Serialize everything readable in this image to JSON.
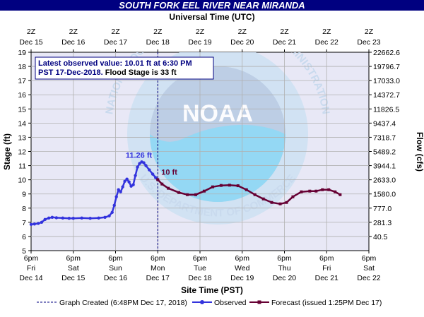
{
  "chart_data": {
    "type": "line",
    "title": "SOUTH FORK EEL RIVER NEAR MIRANDA",
    "top_axis_title": "Universal Time (UTC)",
    "xlabel": "Site Time (PST)",
    "ylabel": "Stage (ft)",
    "y2label": "Flow (cfs)",
    "ylim": [
      5,
      19
    ],
    "y_ticks": [
      "5",
      "6",
      "7",
      "8",
      "9",
      "10",
      "11",
      "12",
      "13",
      "14",
      "15",
      "16",
      "17",
      "18",
      "19"
    ],
    "flow_ticks": [
      {
        "stage": 6,
        "label": "40.5"
      },
      {
        "stage": 7,
        "label": "281.3"
      },
      {
        "stage": 8,
        "label": "777.0"
      },
      {
        "stage": 9,
        "label": "1580.0"
      },
      {
        "stage": 10,
        "label": "2633.0"
      },
      {
        "stage": 11,
        "label": "3944.1"
      },
      {
        "stage": 12,
        "label": "5489.2"
      },
      {
        "stage": 13,
        "label": "7318.7"
      },
      {
        "stage": 14,
        "label": "9437.4"
      },
      {
        "stage": 15,
        "label": "11826.5"
      },
      {
        "stage": 16,
        "label": "14372.7"
      },
      {
        "stage": 17,
        "label": "17033.0"
      },
      {
        "stage": 18,
        "label": "19796.7"
      },
      {
        "stage": 19,
        "label": "22662.6"
      }
    ],
    "bottom_ticks": [
      {
        "time": "6pm",
        "dow": "Fri",
        "date": "Dec 14"
      },
      {
        "time": "6pm",
        "dow": "Sat",
        "date": "Dec 15"
      },
      {
        "time": "6pm",
        "dow": "Sun",
        "date": "Dec 16"
      },
      {
        "time": "6pm",
        "dow": "Mon",
        "date": "Dec 17"
      },
      {
        "time": "6pm",
        "dow": "Tue",
        "date": "Dec 18"
      },
      {
        "time": "6pm",
        "dow": "Wed",
        "date": "Dec 19"
      },
      {
        "time": "6pm",
        "dow": "Thu",
        "date": "Dec 20"
      },
      {
        "time": "6pm",
        "dow": "Fri",
        "date": "Dec 21"
      },
      {
        "time": "6pm",
        "dow": "Sat",
        "date": "Dec 22"
      }
    ],
    "top_ticks": [
      {
        "time": "2Z",
        "date": "Dec 15"
      },
      {
        "time": "2Z",
        "date": "Dec 16"
      },
      {
        "time": "2Z",
        "date": "Dec 17"
      },
      {
        "time": "2Z",
        "date": "Dec 18"
      },
      {
        "time": "2Z",
        "date": "Dec 19"
      },
      {
        "time": "2Z",
        "date": "Dec 20"
      },
      {
        "time": "2Z",
        "date": "Dec 21"
      },
      {
        "time": "2Z",
        "date": "Dec 22"
      },
      {
        "time": "2Z",
        "date": "Dec 23"
      }
    ],
    "info_box": {
      "line1": "Latest observed value: 10.01 ft at 6:30 PM",
      "line2a": "PST 17-Dec-2018.",
      "line2b": " Flood Stage is 33 ft"
    },
    "peak_label": "11.26 ft",
    "current_label": "10 ft",
    "now_day": 3.0,
    "observed": [
      [
        0.0,
        6.85
      ],
      [
        0.08,
        6.88
      ],
      [
        0.17,
        6.92
      ],
      [
        0.25,
        7.0
      ],
      [
        0.33,
        7.2
      ],
      [
        0.42,
        7.3
      ],
      [
        0.5,
        7.35
      ],
      [
        0.6,
        7.32
      ],
      [
        0.75,
        7.3
      ],
      [
        0.9,
        7.28
      ],
      [
        1.0,
        7.28
      ],
      [
        1.2,
        7.3
      ],
      [
        1.4,
        7.28
      ],
      [
        1.6,
        7.3
      ],
      [
        1.75,
        7.35
      ],
      [
        1.85,
        7.45
      ],
      [
        1.92,
        7.7
      ],
      [
        1.97,
        8.2
      ],
      [
        2.02,
        8.8
      ],
      [
        2.07,
        9.3
      ],
      [
        2.12,
        9.15
      ],
      [
        2.17,
        9.5
      ],
      [
        2.22,
        9.9
      ],
      [
        2.27,
        10.05
      ],
      [
        2.32,
        9.85
      ],
      [
        2.37,
        9.55
      ],
      [
        2.42,
        9.65
      ],
      [
        2.47,
        10.3
      ],
      [
        2.52,
        10.9
      ],
      [
        2.57,
        11.15
      ],
      [
        2.62,
        11.26
      ],
      [
        2.67,
        11.2
      ],
      [
        2.72,
        11.0
      ],
      [
        2.8,
        10.7
      ],
      [
        2.88,
        10.4
      ],
      [
        2.95,
        10.15
      ],
      [
        3.0,
        10.01
      ]
    ],
    "forecast": [
      [
        3.0,
        10.01
      ],
      [
        3.1,
        9.7
      ],
      [
        3.25,
        9.4
      ],
      [
        3.5,
        9.1
      ],
      [
        3.7,
        8.95
      ],
      [
        3.9,
        8.95
      ],
      [
        4.1,
        9.2
      ],
      [
        4.3,
        9.5
      ],
      [
        4.5,
        9.6
      ],
      [
        4.7,
        9.62
      ],
      [
        4.9,
        9.58
      ],
      [
        5.1,
        9.3
      ],
      [
        5.3,
        8.95
      ],
      [
        5.5,
        8.65
      ],
      [
        5.7,
        8.4
      ],
      [
        5.9,
        8.3
      ],
      [
        6.05,
        8.4
      ],
      [
        6.2,
        8.8
      ],
      [
        6.4,
        9.15
      ],
      [
        6.6,
        9.2
      ],
      [
        6.75,
        9.2
      ],
      [
        6.9,
        9.3
      ],
      [
        7.05,
        9.3
      ],
      [
        7.2,
        9.15
      ],
      [
        7.32,
        8.95
      ]
    ],
    "legend": {
      "graph_created": "Graph Created (6:48PM Dec 17, 2018)",
      "observed": "Observed",
      "forecast": "Forecast (issued 1:25PM Dec 17)"
    },
    "watermark": "NATIONAL OCEANIC AND ATMOSPHERIC ADMINISTRATION · U.S. DEPARTMENT OF COMMERCE · NOAA",
    "colors": {
      "title_bar": "#000080",
      "plot_bg": "#e8e8f6",
      "grid": "#b0b0b0",
      "observed": "#3333dd",
      "forecast": "#660033",
      "now_line": "#000080",
      "info_border": "#000080",
      "info_text": "#000080",
      "noaa_blue": "#1b6ab7",
      "noaa_light": "#8ab8e0"
    }
  }
}
